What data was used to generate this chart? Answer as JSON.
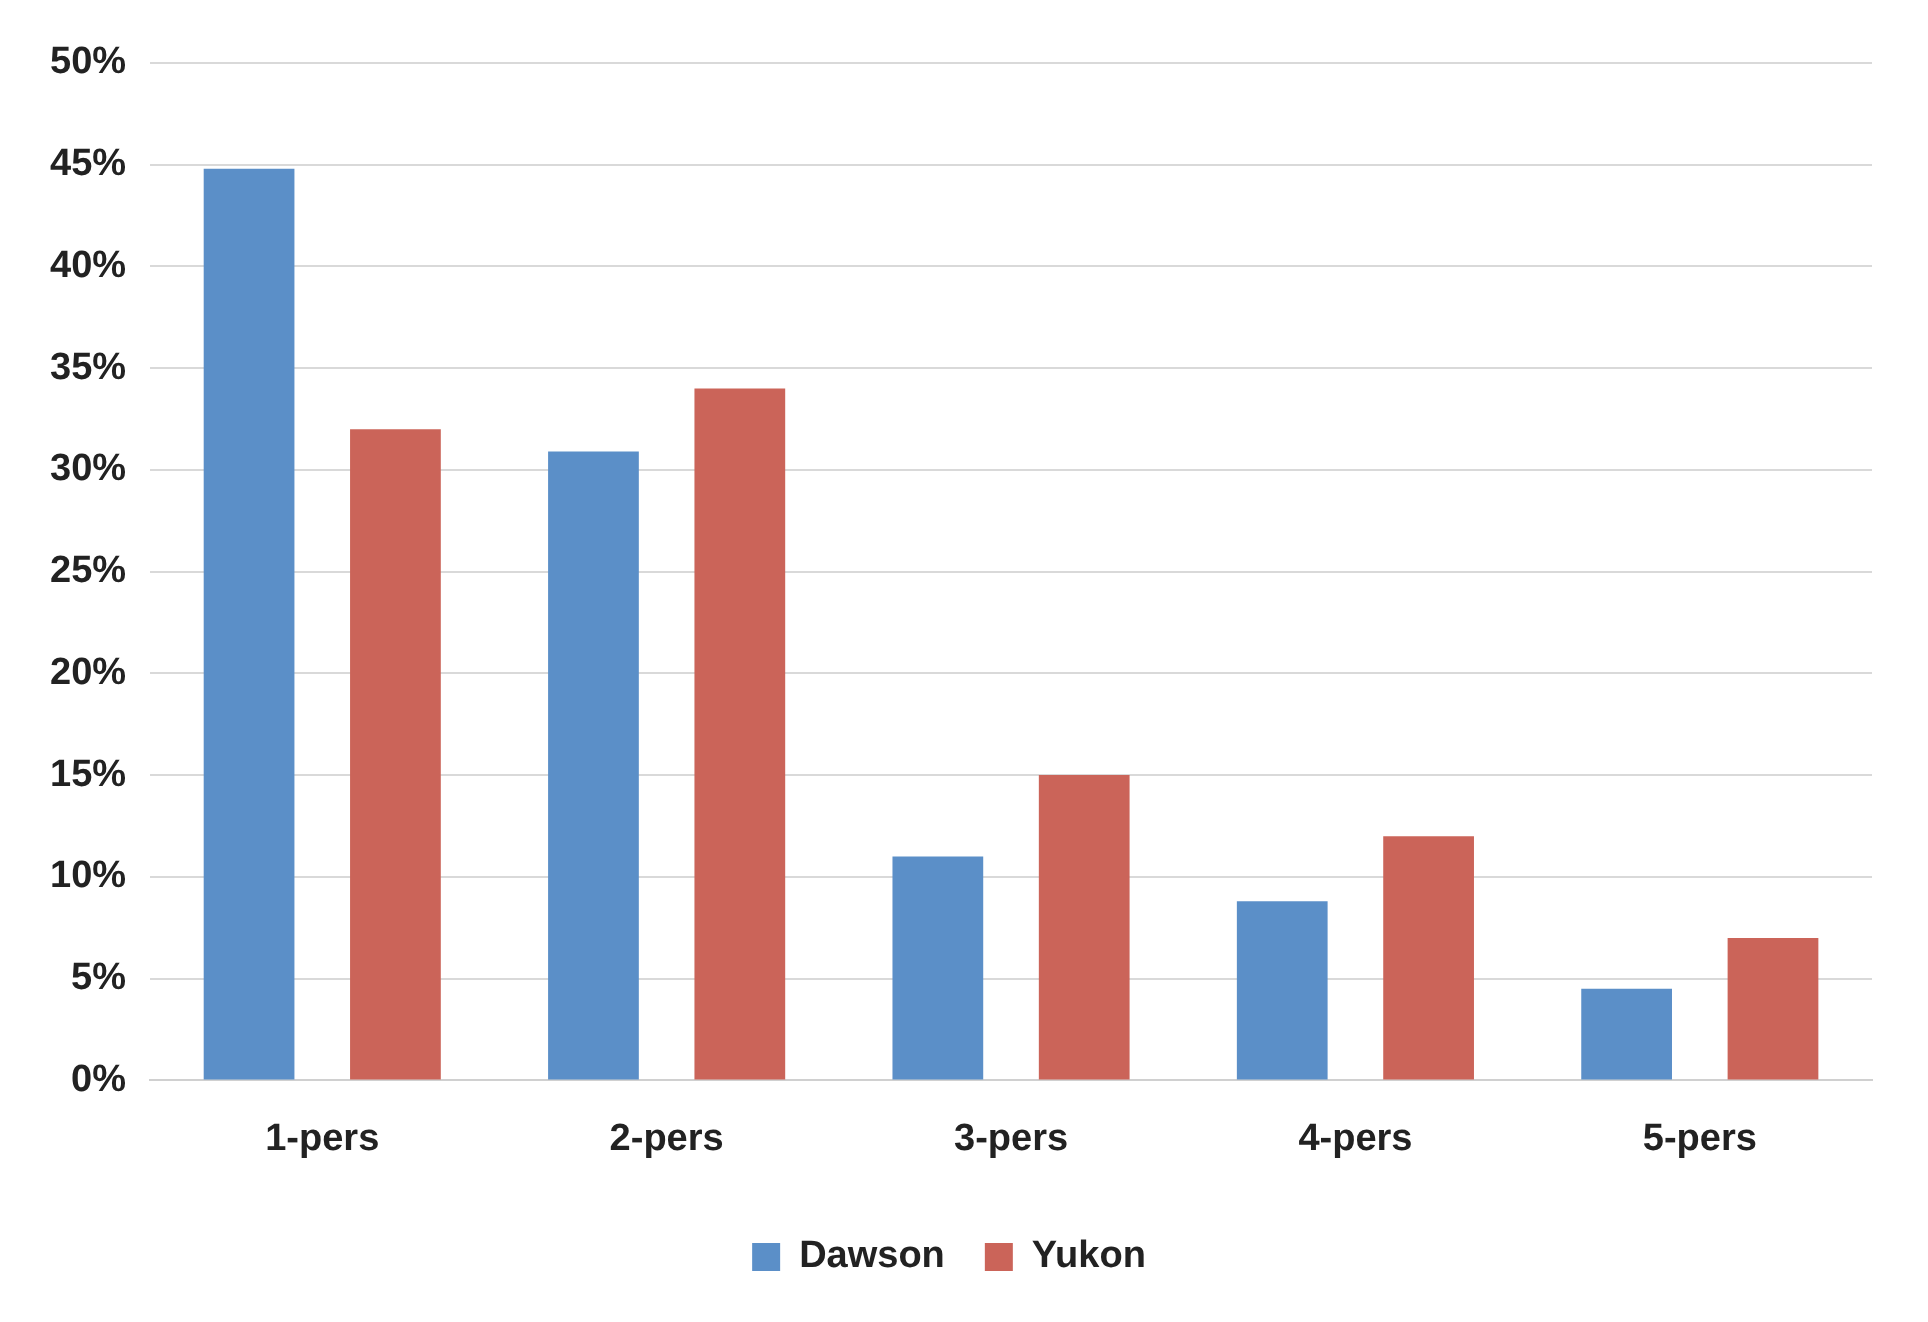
{
  "chart_data": {
    "type": "bar",
    "categories": [
      "1-pers",
      "2-pers",
      "3-pers",
      "4-pers",
      "5-pers"
    ],
    "series": [
      {
        "name": "Dawson",
        "color": "#5b8fc8",
        "values": [
          44.8,
          30.9,
          11,
          8.8,
          4.5
        ]
      },
      {
        "name": "Yukon",
        "color": "#cb6459",
        "values": [
          32,
          34,
          15,
          12,
          7
        ]
      }
    ],
    "ylim": [
      0,
      50
    ],
    "yticks": [
      {
        "value": 0,
        "label": "0%"
      },
      {
        "value": 5,
        "label": "5%"
      },
      {
        "value": 10,
        "label": "10%"
      },
      {
        "value": 15,
        "label": "15%"
      },
      {
        "value": 20,
        "label": "20%"
      },
      {
        "value": 25,
        "label": "25%"
      },
      {
        "value": 30,
        "label": "30%"
      },
      {
        "value": 35,
        "label": "35%"
      },
      {
        "value": 40,
        "label": "40%"
      },
      {
        "value": 45,
        "label": "45%"
      },
      {
        "value": 50,
        "label": "50%"
      }
    ],
    "grid": "y",
    "legend": "bottom"
  }
}
